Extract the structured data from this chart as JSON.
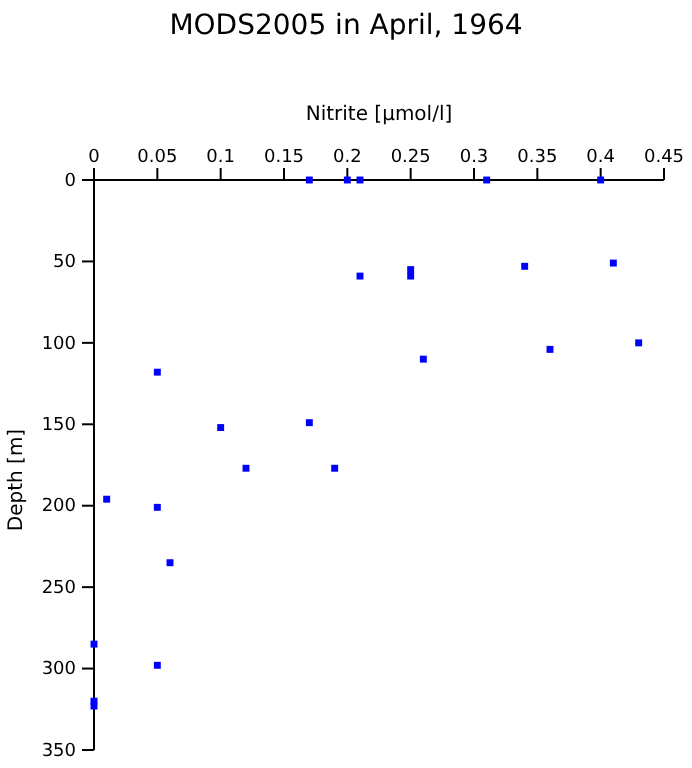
{
  "chart_data": {
    "type": "scatter",
    "title": "MODS2005 in April, 1964",
    "xlabel": "Nitrite [µmol/l]",
    "ylabel": "Depth [m]",
    "x": [
      0.17,
      0.2,
      0.21,
      0.31,
      0.4,
      0.41,
      0.34,
      0.25,
      0.25,
      0.21,
      0.43,
      0.36,
      0.26,
      0.05,
      0.17,
      0.1,
      0.12,
      0.19,
      0.01,
      0.05,
      0.06,
      0,
      0.05,
      0,
      0
    ],
    "series": [
      {
        "color": "#0000ff",
        "values": [
          0,
          0,
          0,
          0,
          0,
          51,
          53,
          55,
          59,
          59,
          100,
          104,
          110,
          118,
          149,
          152,
          177,
          177,
          196,
          201,
          235,
          285,
          298,
          320,
          323
        ]
      }
    ],
    "xlim": [
      0,
      0.45
    ],
    "xticks": [
      0,
      0.05,
      0.1,
      0.15,
      0.2,
      0.25,
      0.3,
      0.35,
      0.4,
      0.45
    ],
    "ylim": [
      350,
      0
    ],
    "yticks": [
      0,
      50,
      100,
      150,
      200,
      250,
      300,
      350
    ],
    "marker": "square",
    "grid": false
  }
}
